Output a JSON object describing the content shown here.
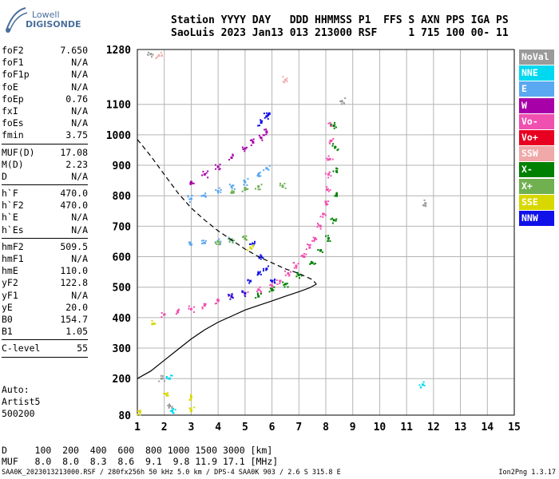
{
  "brand": {
    "line1": "Lowell",
    "line2": "DIGISONDE"
  },
  "header": {
    "line1": "Station YYYY DAY   DDD HHMMSS P1  FFS S AXN PPS IGA PS",
    "line2": "SaoLuis 2023 Jan13 013 213000 RSF     1 715 100 00- 11"
  },
  "params": [
    {
      "label": "foF2",
      "value": "7.650"
    },
    {
      "label": "foF1",
      "value": "N/A"
    },
    {
      "label": "foF1p",
      "value": "N/A"
    },
    {
      "label": "foE",
      "value": "N/A"
    },
    {
      "label": "foEp",
      "value": "0.76"
    },
    {
      "label": "fxI",
      "value": "N/A"
    },
    {
      "label": "foEs",
      "value": "N/A"
    },
    {
      "label": "fmin",
      "value": "3.75"
    },
    {
      "sep": true
    },
    {
      "label": "MUF(D)",
      "value": "17.08"
    },
    {
      "label": "M(D)",
      "value": "2.23"
    },
    {
      "label": "D",
      "value": "N/A"
    },
    {
      "sep": true
    },
    {
      "label": "h`F",
      "value": "470.0"
    },
    {
      "label": "h`F2",
      "value": "470.0"
    },
    {
      "label": "h`E",
      "value": "N/A"
    },
    {
      "label": "h`Es",
      "value": "N/A"
    },
    {
      "sep": true
    },
    {
      "label": "hmF2",
      "value": "509.5"
    },
    {
      "label": "hmF1",
      "value": "N/A"
    },
    {
      "label": "hmE",
      "value": "110.0"
    },
    {
      "label": "yF2",
      "value": "122.8"
    },
    {
      "label": "yF1",
      "value": "N/A"
    },
    {
      "label": "yE",
      "value": "20.0"
    },
    {
      "label": "B0",
      "value": "154.7"
    },
    {
      "label": "B1",
      "value": "1.05"
    },
    {
      "sep": true
    },
    {
      "label": "C-level",
      "value": "55"
    },
    {
      "sep": true
    }
  ],
  "auto": {
    "line1": "Auto:",
    "line2": "Artist5",
    "line3": "500200"
  },
  "dmuf": {
    "d_line": "D     100  200  400  600  800 1000 1500 3000 [km]",
    "muf_line": "MUF   8.0  8.0  8.3  8.6  9.1  9.8 11.9 17.1 [MHz]"
  },
  "footer": {
    "left": "SAA0K_2023013213000.RSF / 280fx256h 50 kHz 5.0 km / DPS-4 SAA0K 903 / 2.6 S 315.8 E",
    "right": "Ion2Png 1.3.17"
  },
  "legend": [
    {
      "label": "NoVal",
      "color": "#9a9a9a"
    },
    {
      "label": "NNE",
      "color": "#00d8f0"
    },
    {
      "label": "E",
      "color": "#5aa8f0"
    },
    {
      "label": "W",
      "color": "#a800a8"
    },
    {
      "label": "Vo-",
      "color": "#f050b0"
    },
    {
      "label": "Vo+",
      "color": "#e80020"
    },
    {
      "label": "SSW",
      "color": "#f0a8a8"
    },
    {
      "label": "X-",
      "color": "#008000"
    },
    {
      "label": "X+",
      "color": "#70b050"
    },
    {
      "label": "SSE",
      "color": "#d8d800"
    },
    {
      "label": "NNW",
      "color": "#1010e8"
    }
  ],
  "chart_data": {
    "type": "scatter",
    "xlim": [
      1,
      15
    ],
    "ylim": [
      80,
      1280
    ],
    "x_ticks": [
      1,
      2,
      3,
      4,
      5,
      6,
      7,
      8,
      9,
      10,
      11,
      12,
      13,
      14,
      15
    ],
    "y_ticks": [
      80,
      200,
      300,
      400,
      500,
      600,
      700,
      800,
      900,
      1000,
      1100,
      1280
    ],
    "grid": true,
    "legend_position": "right",
    "series": [
      {
        "name": "Vo-",
        "points": [
          [
            2.0,
            410
          ],
          [
            2.5,
            418
          ],
          [
            3,
            428
          ],
          [
            3.5,
            440
          ],
          [
            4,
            455
          ],
          [
            4.5,
            468
          ],
          [
            5,
            480
          ],
          [
            5.5,
            492
          ],
          [
            6,
            505
          ],
          [
            6.3,
            520
          ],
          [
            6.6,
            545
          ],
          [
            6.9,
            570
          ],
          [
            7.2,
            600
          ],
          [
            7.4,
            630
          ],
          [
            7.6,
            660
          ],
          [
            7.8,
            700
          ],
          [
            7.9,
            740
          ],
          [
            8.0,
            780
          ],
          [
            8.05,
            820
          ],
          [
            8.1,
            870
          ],
          [
            8.15,
            920
          ],
          [
            8.2,
            980
          ],
          [
            8.2,
            1030
          ]
        ]
      },
      {
        "name": "X-",
        "points": [
          [
            5.5,
            470
          ],
          [
            6,
            490
          ],
          [
            6.5,
            510
          ],
          [
            7,
            540
          ],
          [
            7.5,
            580
          ],
          [
            7.8,
            620
          ],
          [
            8.1,
            660
          ],
          [
            8.3,
            720
          ],
          [
            8.4,
            800
          ],
          [
            8.4,
            880
          ],
          [
            8.35,
            960
          ],
          [
            8.3,
            1030
          ]
        ]
      },
      {
        "name": "NNW",
        "points": [
          [
            4.5,
            470
          ],
          [
            5,
            480
          ],
          [
            5.2,
            520
          ],
          [
            5.5,
            545
          ],
          [
            5.6,
            600
          ],
          [
            5.3,
            640
          ],
          [
            5.8,
            560
          ],
          [
            6,
            520
          ],
          [
            5.9,
            1070
          ],
          [
            5.6,
            1040
          ],
          [
            5.8,
            1060
          ]
        ]
      },
      {
        "name": "E",
        "points": [
          [
            3,
            790
          ],
          [
            3.5,
            800
          ],
          [
            4,
            815
          ],
          [
            4.5,
            830
          ],
          [
            5,
            845
          ],
          [
            5.5,
            870
          ],
          [
            5.8,
            890
          ],
          [
            3,
            640
          ],
          [
            3.5,
            645
          ],
          [
            4,
            650
          ],
          [
            4.5,
            655
          ]
        ]
      },
      {
        "name": "W",
        "points": [
          [
            3,
            845
          ],
          [
            3.5,
            870
          ],
          [
            4,
            895
          ],
          [
            4.5,
            925
          ],
          [
            5,
            955
          ],
          [
            5.3,
            975
          ],
          [
            5.6,
            990
          ],
          [
            5.8,
            1010
          ]
        ]
      },
      {
        "name": "X+",
        "points": [
          [
            4,
            650
          ],
          [
            4.5,
            655
          ],
          [
            5,
            660
          ],
          [
            4.5,
            810
          ],
          [
            5,
            820
          ],
          [
            5.5,
            830
          ],
          [
            6.4,
            830
          ]
        ]
      },
      {
        "name": "SSE",
        "points": [
          [
            1.6,
            380
          ],
          [
            2.1,
            145
          ],
          [
            3,
            140
          ],
          [
            5.2,
            630
          ],
          [
            1.1,
            90
          ],
          [
            3,
            95
          ]
        ]
      },
      {
        "name": "NoVal",
        "points": [
          [
            1.5,
            1265
          ],
          [
            1.9,
            200
          ],
          [
            2.2,
            110
          ],
          [
            11.7,
            775
          ],
          [
            8.6,
            1110
          ]
        ]
      },
      {
        "name": "NNE",
        "points": [
          [
            11.6,
            180
          ],
          [
            2.2,
            200
          ],
          [
            2.3,
            95
          ]
        ]
      },
      {
        "name": "SSW",
        "points": [
          [
            1.8,
            1260
          ],
          [
            6.5,
            1180
          ]
        ]
      }
    ],
    "curves": [
      {
        "name": "electron-density-profile",
        "style": "solid",
        "points": [
          [
            1,
            200
          ],
          [
            1.5,
            225
          ],
          [
            2,
            260
          ],
          [
            2.5,
            295
          ],
          [
            3,
            330
          ],
          [
            3.5,
            360
          ],
          [
            4,
            385
          ],
          [
            4.5,
            405
          ],
          [
            5,
            425
          ],
          [
            5.5,
            440
          ],
          [
            6,
            455
          ],
          [
            6.5,
            470
          ],
          [
            7,
            485
          ],
          [
            7.4,
            498
          ],
          [
            7.65,
            510
          ]
        ]
      },
      {
        "name": "muf-d-curve",
        "style": "dashed",
        "points": [
          [
            1,
            985
          ],
          [
            1.5,
            930
          ],
          [
            2,
            870
          ],
          [
            2.5,
            810
          ],
          [
            3,
            760
          ],
          [
            3.5,
            720
          ],
          [
            4,
            685
          ],
          [
            4.5,
            655
          ],
          [
            5,
            625
          ],
          [
            5.5,
            600
          ],
          [
            6,
            580
          ],
          [
            6.5,
            560
          ],
          [
            7,
            545
          ],
          [
            7.5,
            525
          ],
          [
            7.65,
            510
          ]
        ]
      }
    ]
  }
}
